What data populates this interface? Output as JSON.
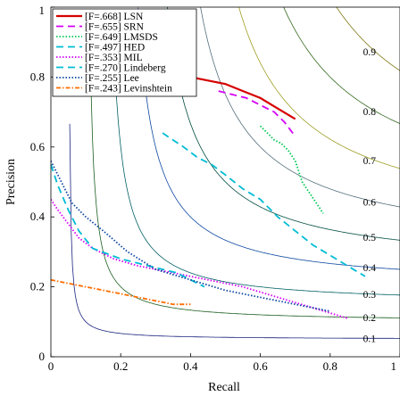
{
  "chart_data": {
    "type": "line",
    "xlabel": "Recall",
    "ylabel": "Precision",
    "xlim": [
      0,
      1
    ],
    "ylim": [
      0,
      1
    ],
    "xticks": [
      "0",
      "0.2",
      "0.4",
      "0.6",
      "0.8",
      "1"
    ],
    "yticks": [
      "0",
      "0.2",
      "0.4",
      "0.6",
      "0.8",
      "1"
    ],
    "grid": false,
    "legend_position": "top-left",
    "iso_f_labels": [
      "0.1",
      "0.2",
      "0.3",
      "0.4",
      "0.5",
      "0.6",
      "0.7",
      "0.8",
      "0.9"
    ],
    "iso_f_values": [
      0.1,
      0.2,
      0.3,
      0.4,
      0.5,
      0.6,
      0.7,
      0.8,
      0.9
    ],
    "iso_f_colors": [
      "#1a237e",
      "#1b5e20",
      "#006064",
      "#0d47a1",
      "#004d40",
      "#546e7a",
      "#9e9d24",
      "#33691e",
      "#827717"
    ],
    "series": [
      {
        "name": "[F=.668] LSN",
        "color": "#d50000",
        "style": "solid",
        "x": [
          0.34,
          0.4,
          0.45,
          0.5,
          0.55,
          0.6,
          0.65,
          0.7
        ],
        "y": [
          0.8,
          0.8,
          0.79,
          0.78,
          0.76,
          0.74,
          0.71,
          0.68
        ]
      },
      {
        "name": "[F=.655] SRN",
        "color": "#d500f9",
        "style": "dashed",
        "x": [
          0.48,
          0.52,
          0.56,
          0.6,
          0.64,
          0.67,
          0.7
        ],
        "y": [
          0.76,
          0.75,
          0.74,
          0.72,
          0.7,
          0.67,
          0.63
        ]
      },
      {
        "name": "[F=.649] LMSDS",
        "color": "#00c853",
        "style": "dotted",
        "x": [
          0.6,
          0.62,
          0.64,
          0.66,
          0.68,
          0.7,
          0.71,
          0.72,
          0.74,
          0.76,
          0.78
        ],
        "y": [
          0.66,
          0.64,
          0.62,
          0.61,
          0.59,
          0.56,
          0.53,
          0.5,
          0.47,
          0.44,
          0.41
        ]
      },
      {
        "name": "[F=.497] HED",
        "color": "#00bcd4",
        "style": "dashed",
        "x": [
          0.32,
          0.35,
          0.38,
          0.42,
          0.46,
          0.5,
          0.55,
          0.6,
          0.65,
          0.7,
          0.75,
          0.8,
          0.85,
          0.9
        ],
        "y": [
          0.64,
          0.62,
          0.6,
          0.57,
          0.55,
          0.52,
          0.48,
          0.45,
          0.4,
          0.36,
          0.32,
          0.29,
          0.26,
          0.23
        ]
      },
      {
        "name": "[F=.353] MIL",
        "color": "#d500f9",
        "style": "dotted",
        "x": [
          0.0,
          0.02,
          0.05,
          0.08,
          0.12,
          0.18,
          0.25,
          0.35,
          0.45,
          0.55,
          0.65,
          0.75,
          0.85
        ],
        "y": [
          0.45,
          0.42,
          0.38,
          0.34,
          0.31,
          0.28,
          0.26,
          0.24,
          0.22,
          0.2,
          0.17,
          0.14,
          0.11
        ]
      },
      {
        "name": "[F=.270] Lindeberg",
        "color": "#00bcd4",
        "style": "dashed",
        "x": [
          0.0,
          0.02,
          0.05,
          0.08,
          0.12,
          0.2,
          0.28,
          0.36,
          0.44
        ],
        "y": [
          0.55,
          0.49,
          0.42,
          0.36,
          0.31,
          0.28,
          0.26,
          0.24,
          0.2
        ]
      },
      {
        "name": "[F=.255] Lee",
        "color": "#0d47a1",
        "style": "dotted",
        "x": [
          0.0,
          0.03,
          0.06,
          0.1,
          0.15,
          0.22,
          0.3,
          0.4,
          0.5,
          0.6,
          0.7,
          0.8
        ],
        "y": [
          0.56,
          0.5,
          0.44,
          0.4,
          0.36,
          0.3,
          0.25,
          0.22,
          0.19,
          0.17,
          0.15,
          0.13
        ]
      },
      {
        "name": "[F=.243] Levinshtein",
        "color": "#ff6d00",
        "style": "dashdot",
        "x": [
          0.0,
          0.05,
          0.1,
          0.15,
          0.2,
          0.25,
          0.3,
          0.35,
          0.4
        ],
        "y": [
          0.22,
          0.21,
          0.2,
          0.19,
          0.18,
          0.17,
          0.16,
          0.15,
          0.15
        ]
      }
    ]
  }
}
